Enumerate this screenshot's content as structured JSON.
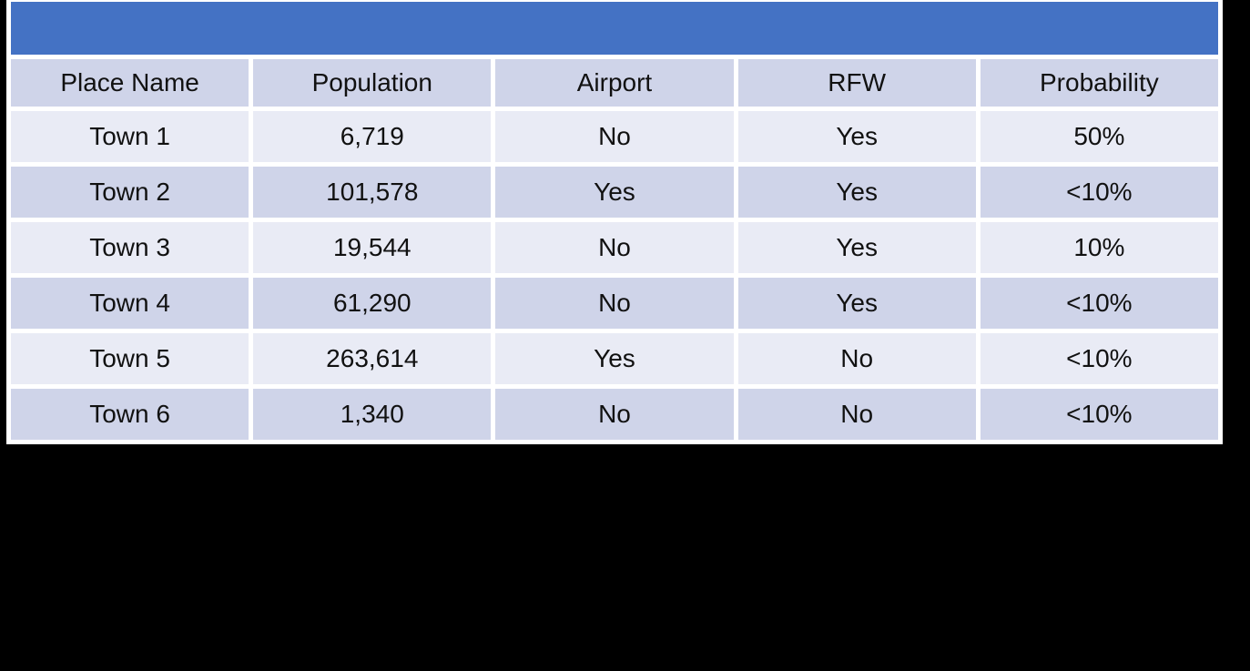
{
  "canvas": {
    "background": "#000000"
  },
  "table": {
    "title_bar": {
      "label": ""
    },
    "columns": [
      "Place Name",
      "Population",
      "Airport",
      "RFW",
      "Probability"
    ],
    "rows": [
      {
        "place": "Town 1",
        "population": "6,719",
        "airport": "No",
        "rfw": "Yes",
        "probability": "50%"
      },
      {
        "place": "Town 2",
        "population": "101,578",
        "airport": "Yes",
        "rfw": "Yes",
        "probability": "<10%"
      },
      {
        "place": "Town 3",
        "population": "19,544",
        "airport": "No",
        "rfw": "Yes",
        "probability": "10%"
      },
      {
        "place": "Town 4",
        "population": "61,290",
        "airport": "No",
        "rfw": "Yes",
        "probability": "<10%"
      },
      {
        "place": "Town 5",
        "population": "263,614",
        "airport": "Yes",
        "rfw": "No",
        "probability": "<10%"
      },
      {
        "place": "Town 6",
        "population": "1,340",
        "airport": "No",
        "rfw": "No",
        "probability": "<10%"
      }
    ],
    "colors": {
      "accent": "#4472C4",
      "band_dark": "#CFD4E9",
      "band_light": "#E9EBF5",
      "grid": "#FFFFFF",
      "text": "#111111"
    }
  }
}
